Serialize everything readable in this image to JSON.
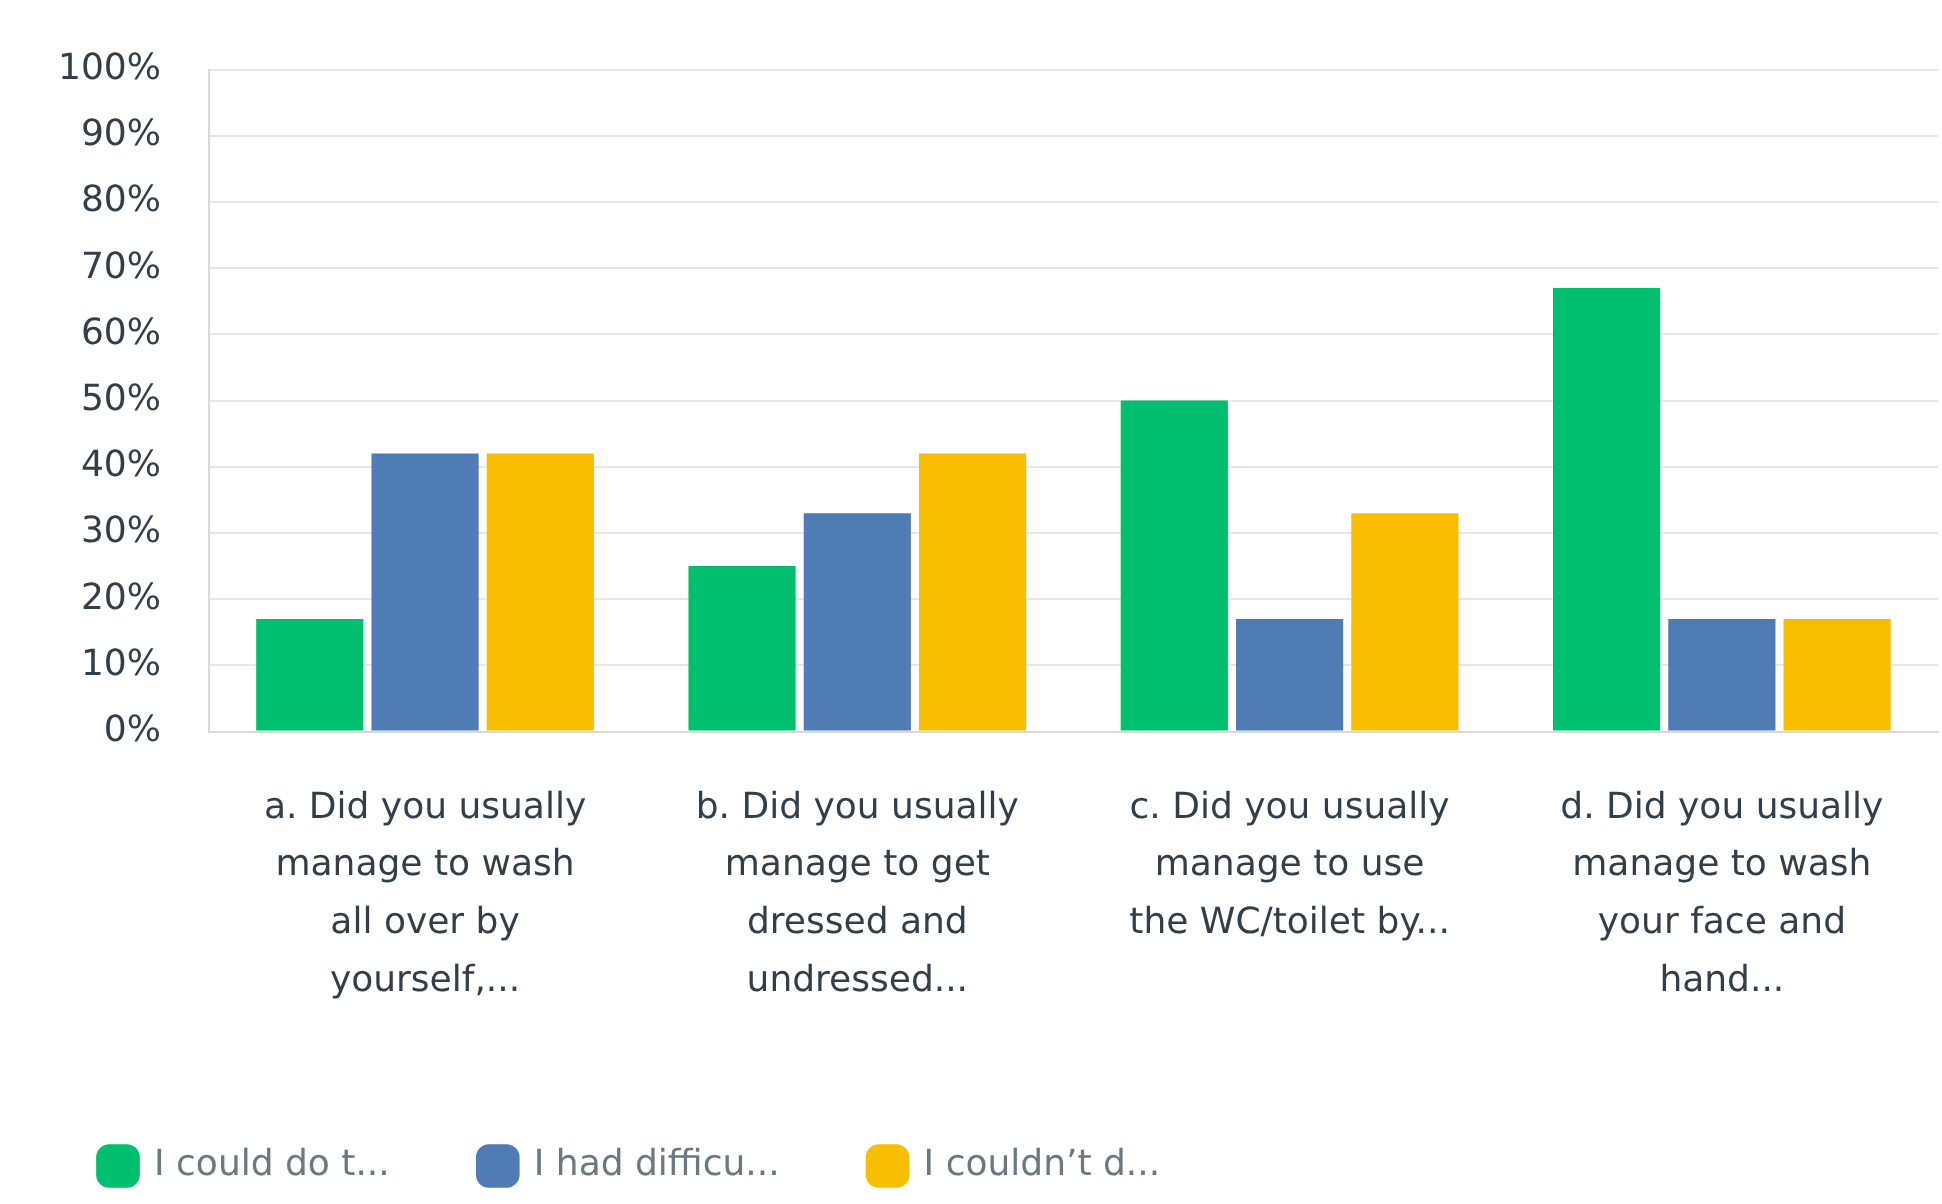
{
  "chart_data": {
    "type": "bar",
    "categories": [
      "a. Did you usually manage to wash all over by yourself,...",
      "b. Did you usually manage to get dressed and undressed...",
      "c. Did you usually manage to use the WC/toilet by...",
      "d. Did you usually manage to wash your face and hand..."
    ],
    "series": [
      {
        "name": "I could do t...",
        "color": "#00bf6f",
        "values": [
          17,
          25,
          50,
          67
        ]
      },
      {
        "name": "I had difficu...",
        "color": "#507cb6",
        "values": [
          42,
          33,
          17,
          17
        ]
      },
      {
        "name": "I couldn’t d...",
        "color": "#f9be00",
        "values": [
          42,
          42,
          33,
          17
        ]
      }
    ],
    "ylim": [
      0,
      100
    ],
    "yticks": [
      {
        "value": 0,
        "label": "0%"
      },
      {
        "value": 10,
        "label": "10%"
      },
      {
        "value": 20,
        "label": "20%"
      },
      {
        "value": 30,
        "label": "30%"
      },
      {
        "value": 40,
        "label": "40%"
      },
      {
        "value": 50,
        "label": "50%"
      },
      {
        "value": 60,
        "label": "60%"
      },
      {
        "value": 70,
        "label": "70%"
      },
      {
        "value": 80,
        "label": "80%"
      },
      {
        "value": 90,
        "label": "90%"
      },
      {
        "value": 100,
        "label": "100%"
      }
    ],
    "grid": "y",
    "legend": "bottom left"
  }
}
